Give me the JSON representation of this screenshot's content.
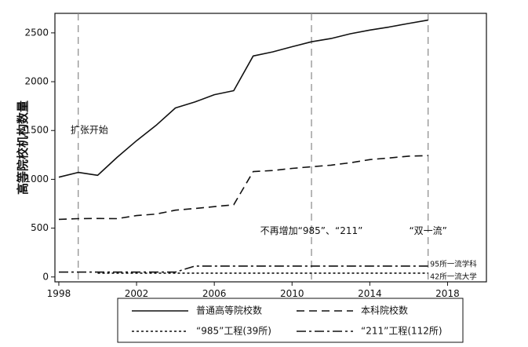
{
  "chart_data": {
    "type": "line",
    "title": "",
    "xlabel": "",
    "ylabel": "高等院校机构数量",
    "xlim": [
      1997.8,
      2020
    ],
    "ylim": [
      -50,
      2700
    ],
    "x_ticks": [
      "1998",
      "2002",
      "2006",
      "2010",
      "2014",
      "2018"
    ],
    "y_ticks": [
      "0",
      "500",
      "1000",
      "1500",
      "2000",
      "2500"
    ],
    "grid": false,
    "legend_position": "bottom",
    "vlines": [
      1999,
      2011,
      2017
    ],
    "series": [
      {
        "name": "普通高等院校数",
        "style": "solid",
        "x": [
          1998,
          1999,
          2000,
          2001,
          2002,
          2003,
          2004,
          2005,
          2006,
          2007,
          2008,
          2009,
          2010,
          2011,
          2012,
          2013,
          2014,
          2015,
          2016,
          2017
        ],
        "values": [
          1022,
          1071,
          1041,
          1225,
          1396,
          1552,
          1731,
          1792,
          1867,
          1908,
          2263,
          2305,
          2358,
          2409,
          2442,
          2491,
          2529,
          2560,
          2596,
          2631
        ]
      },
      {
        "name": "本科院校数",
        "style": "dashed",
        "x": [
          1998,
          1999,
          2000,
          2001,
          2002,
          2003,
          2004,
          2005,
          2006,
          2007,
          2008,
          2009,
          2010,
          2011,
          2012,
          2013,
          2014,
          2015,
          2016,
          2017
        ],
        "values": [
          590,
          597,
          599,
          597,
          629,
          644,
          684,
          701,
          720,
          740,
          1079,
          1090,
          1112,
          1129,
          1145,
          1170,
          1202,
          1219,
          1237,
          1243
        ]
      },
      {
        "name": "“985”工程(39所)",
        "style": "dotted",
        "x": [
          2000,
          2017
        ],
        "values": [
          39,
          39
        ]
      },
      {
        "name": "“211”工程(112所)",
        "style": "dashdot",
        "x": [
          1998,
          2003,
          2004,
          2005,
          2017
        ],
        "values": [
          50,
          50,
          50,
          112,
          112
        ]
      }
    ],
    "annotations": [
      {
        "text": "扩张开始",
        "x": 1998.6,
        "y": 1500
      },
      {
        "text": "不再增加“985”、“211”",
        "x": 2011,
        "y": 470
      },
      {
        "text": "“双一流”",
        "x": 2017,
        "y": 470
      },
      {
        "text": "95所一流学科",
        "x": 2017.1,
        "y": 125
      },
      {
        "text": "42所一流大学",
        "x": 2017.1,
        "y": 0
      }
    ]
  }
}
